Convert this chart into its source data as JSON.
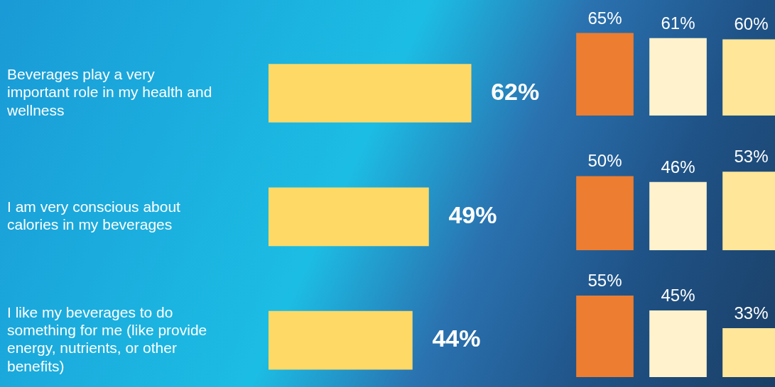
{
  "chart_data": [
    {
      "type": "bar",
      "orientation": "horizontal",
      "categories": [
        "Beverages play a very important role in my health and wellness",
        "I am very conscious about calories in my beverages",
        "I like my beverages to do something for me (like provide energy, nutrients, or other benefits)"
      ],
      "values": [
        62,
        49,
        44
      ],
      "color": "#ffd966",
      "value_labels": [
        "62%",
        "49%",
        "44%"
      ],
      "tick_labels": "y"
    },
    {
      "type": "bar",
      "categories": [
        null,
        null,
        null
      ],
      "values": [
        65,
        61,
        60
      ],
      "colors": [
        "#ed7d31",
        "#fff2cc",
        "#ffe699"
      ],
      "value_labels": [
        "65%",
        "61%",
        "60%"
      ],
      "tick_labels": false
    },
    {
      "type": "bar",
      "categories": [
        null,
        null,
        null
      ],
      "values": [
        50,
        46,
        53
      ],
      "colors": [
        "#ed7d31",
        "#fff2cc",
        "#ffe699"
      ],
      "value_labels": [
        "50%",
        "46%",
        "53%"
      ],
      "tick_labels": false
    },
    {
      "type": "bar",
      "categories": [
        null,
        null,
        null
      ],
      "values": [
        55,
        45,
        33
      ],
      "colors": [
        "#ed7d31",
        "#fff2cc",
        "#ffe699"
      ],
      "value_labels": [
        "55%",
        "45%",
        "33%"
      ],
      "tick_labels": false
    }
  ]
}
